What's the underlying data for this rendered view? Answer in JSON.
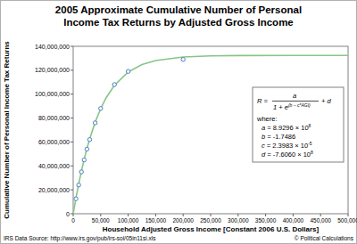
{
  "chart_data": {
    "type": "scatter",
    "title": "2005 Approximate Cumulative Number of Personal Income Tax Returns by Adjusted Gross Income",
    "x_label": "Household Adjusted Gross Income [Constant 2006 U.S. Dollars]",
    "y_label": "Cumulative Number of Personal Income Tax Returns",
    "source": "IRS Data Source: http://www.irs.gov/pub/irs-soi/05in11si.xls",
    "credit": "© Political Calculations",
    "annotations": {
      "lhs": "R =",
      "numerator": "a",
      "denominator": "1 + e",
      "exponent": "(b − c*AGI)",
      "suffix": "+ d",
      "where": "where:",
      "params": [
        {
          "name": "a =",
          "mantissa": "8.9296 × 10",
          "exponent": "8"
        },
        {
          "name": "b =",
          "mantissa": "-1.7486",
          "exponent": ""
        },
        {
          "name": "c =",
          "mantissa": "2.3983 × 10",
          "exponent": "-5"
        },
        {
          "name": "d =",
          "mantissa": "-7.6060 × 10",
          "exponent": "8"
        }
      ]
    },
    "x": [
      0,
      5000,
      10000,
      15000,
      20000,
      25000,
      30000,
      40000,
      50000,
      60000,
      75000,
      100000,
      125000,
      150000,
      200000,
      250000,
      300000,
      400000,
      500000
    ],
    "series": [
      {
        "type": "scatter",
        "marker": "circle",
        "color": "#4a7fc1",
        "values": [
          null,
          12500000,
          24000000,
          35000000,
          45000000,
          54000000,
          62000000,
          76000000,
          88000000,
          null,
          108000000,
          119000000,
          null,
          null,
          129000000,
          null,
          null,
          null,
          null
        ]
      },
      {
        "type": "line",
        "line_style": "solid",
        "color": "#86c586",
        "values": [
          0,
          13000000,
          24800000,
          35700000,
          45500000,
          54500000,
          62600000,
          76600000,
          87900000,
          97000000,
          107400000,
          118500000,
          124700000,
          128100000,
          131100000,
          132000000,
          132300000,
          132400000,
          132400000
        ]
      }
    ],
    "xlim": [
      0,
      500000
    ],
    "xticks": [
      0,
      {
        "value": 50000,
        "label": "50,000"
      },
      {
        "value": 100000,
        "label": "100,000"
      },
      {
        "value": 150000,
        "label": "150,000"
      },
      {
        "value": 200000,
        "label": "200,000"
      },
      {
        "value": 250000,
        "label": "250,000"
      },
      {
        "value": 300000,
        "label": "300,000"
      },
      {
        "value": 350000,
        "label": "350,000"
      },
      {
        "value": 400000,
        "label": "400,000"
      },
      {
        "value": 450000,
        "label": "450,000"
      },
      {
        "value": 500000,
        "label": "500,000"
      }
    ],
    "ylim": [
      0,
      140000000
    ],
    "yticks": [
      0,
      {
        "value": 20000000,
        "label": "20,000,000"
      },
      {
        "value": 40000000,
        "label": "40,000,000"
      },
      {
        "value": 60000000,
        "label": "60,000,000"
      },
      {
        "value": 80000000,
        "label": "80,000,000"
      },
      {
        "value": 100000000,
        "label": "100,000,000"
      },
      {
        "value": 120000000,
        "label": "120,000,000"
      },
      {
        "value": 140000000,
        "label": "140,000,000"
      }
    ],
    "grid": false
  }
}
